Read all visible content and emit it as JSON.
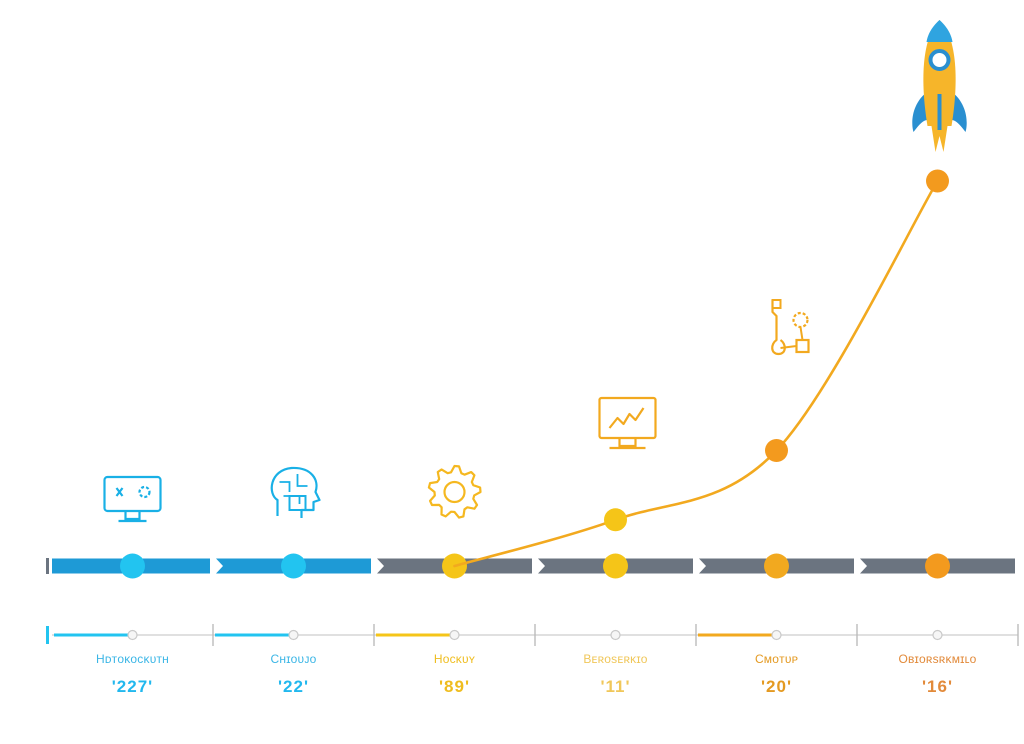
{
  "colors": {
    "blue": "#1e9ad6",
    "blue_light": "#22c4f0",
    "gray": "#6b7480",
    "yellow": "#f5c518",
    "amber": "#f2a91f",
    "orange": "#f39a1e",
    "track": "#d6d6d6"
  },
  "stages": [
    {
      "label": "Hᴅᴛᴏᴋᴏᴄᴋᴜᴛʜ",
      "year": "'227'",
      "icon": "monitor-icon",
      "color": "#22c4f0",
      "label_color": "#3bb6e6",
      "year_color": "#22b8ee",
      "progress": 0.5
    },
    {
      "label": "Cʜɪᴏᴜᴊᴏ",
      "year": "'22'",
      "icon": "brain-head-icon",
      "color": "#22c4f0",
      "label_color": "#3bb6e6",
      "year_color": "#22b8ee",
      "progress": 1.0
    },
    {
      "label": "Hᴏᴄᴋᴜʏ",
      "year": "'89'",
      "icon": "gear-icon",
      "color": "#f5c518",
      "label_color": "#efbd1f",
      "year_color": "#efbd1f",
      "progress": 0.5
    },
    {
      "label": "Bᴇʀᴏsᴇʀᴋɪᴏ",
      "year": "'11'",
      "icon": "chart-monitor-icon",
      "color": "#f5c518",
      "label_color": "#f0c75a",
      "year_color": "#f0c75a",
      "progress": 0.0
    },
    {
      "label": "Cᴍᴏᴛᴜᴘ",
      "year": "'20'",
      "icon": "tools-icon",
      "color": "#f2a91f",
      "label_color": "#e49a22",
      "year_color": "#e49a22",
      "progress": 0.5
    },
    {
      "label": "Oʙɪᴏʀsʀᴋᴍɪʟᴏ",
      "year": "'16'",
      "icon": "rocket-icon",
      "color": "#f39a1e",
      "label_color": "#e28a3a",
      "year_color": "#e28a3a",
      "progress": 0.0
    }
  ],
  "growth_curve": {
    "levels": [
      0,
      0,
      0,
      0.12,
      0.3,
      1.0
    ]
  }
}
